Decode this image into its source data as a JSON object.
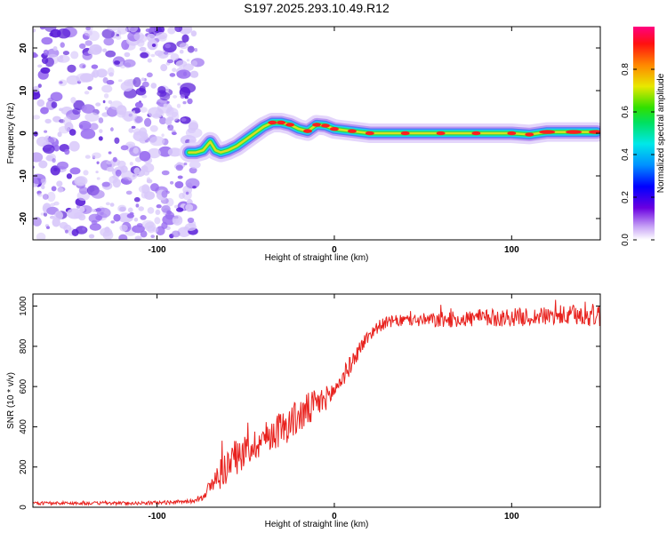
{
  "title": "S197.2025.293.10.49.R12",
  "colors": {
    "line": "#e8211d",
    "blob_dark": "#5a1ed8",
    "blob_mid": "#9a6ef0",
    "blob_light": "#d8c8fa"
  },
  "chart_data": [
    {
      "type": "heatmap",
      "title": "S197.2025.293.10.49.R12",
      "xlabel": "Height of straight line (km)",
      "ylabel": "Frequency (Hz)",
      "xlim": [
        -170,
        150
      ],
      "ylim": [
        -25,
        25
      ],
      "xticks": [
        -100,
        0,
        100
      ],
      "xtick_labels": [
        "-100",
        "0",
        "100"
      ],
      "yticks": [
        -20,
        -10,
        0,
        10,
        20
      ],
      "ytick_labels": [
        "-20",
        "-10",
        "0",
        "10",
        "20"
      ],
      "colorbar": {
        "label": "Normalized spectral amplitude",
        "range": [
          0,
          1
        ],
        "ticks": [
          0.0,
          0.2,
          0.4,
          0.6,
          0.8
        ],
        "tick_labels": [
          "0.0",
          "0.2",
          "0.4",
          "0.6",
          "0.8"
        ]
      },
      "noise_region_x": [
        -170,
        -80
      ],
      "ridge": {
        "x": [
          -82,
          -78,
          -74,
          -70,
          -67,
          -64,
          -60,
          -55,
          -50,
          -45,
          -40,
          -35,
          -30,
          -25,
          -20,
          -15,
          -10,
          -5,
          0,
          10,
          20,
          40,
          60,
          80,
          100,
          110,
          120,
          135,
          148
        ],
        "y": [
          -4.5,
          -4.5,
          -4,
          -2,
          -4,
          -4.5,
          -4,
          -3,
          -1.5,
          0,
          1.5,
          2.5,
          2.5,
          2,
          1,
          0.5,
          2,
          1.8,
          1,
          0.5,
          0,
          0,
          0,
          0,
          0,
          -0.3,
          0.3,
          0.3,
          0.3
        ],
        "amplitude": [
          0.35,
          0.4,
          0.45,
          0.35,
          0.4,
          0.45,
          0.5,
          0.55,
          0.6,
          0.65,
          0.65,
          0.7,
          0.75,
          0.7,
          0.65,
          0.7,
          0.7,
          0.75,
          0.75,
          0.8,
          0.85,
          0.85,
          0.85,
          0.85,
          0.85,
          0.8,
          0.9,
          0.95,
          0.95
        ]
      }
    },
    {
      "type": "line",
      "xlabel": "Height of straight line (km)",
      "ylabel": "SNR (10 * v/v)",
      "xlim": [
        -170,
        150
      ],
      "ylim": [
        0,
        1060
      ],
      "xticks": [
        -100,
        0,
        100
      ],
      "xtick_labels": [
        "-100",
        "0",
        "100"
      ],
      "yticks": [
        0,
        200,
        400,
        600,
        800,
        1000
      ],
      "ytick_labels": [
        "0",
        "200",
        "400",
        "600",
        "800",
        "1000"
      ],
      "series": [
        {
          "name": "SNR",
          "x": [
            -170,
            -150,
            -130,
            -110,
            -90,
            -80,
            -75,
            -70,
            -65,
            -60,
            -55,
            -50,
            -45,
            -40,
            -35,
            -30,
            -25,
            -20,
            -15,
            -10,
            -5,
            0,
            5,
            10,
            15,
            20,
            25,
            30,
            40,
            50,
            60,
            70,
            80,
            90,
            100,
            110,
            120,
            130,
            140,
            150
          ],
          "y": [
            20,
            20,
            20,
            20,
            25,
            30,
            50,
            100,
            160,
            210,
            250,
            280,
            310,
            340,
            370,
            390,
            420,
            450,
            480,
            510,
            540,
            580,
            650,
            720,
            800,
            860,
            900,
            920,
            930,
            930,
            930,
            935,
            940,
            940,
            945,
            945,
            950,
            950,
            955,
            955
          ],
          "noise": [
            8,
            8,
            8,
            8,
            10,
            10,
            20,
            40,
            80,
            90,
            90,
            80,
            80,
            80,
            85,
            90,
            90,
            90,
            90,
            80,
            60,
            50,
            50,
            45,
            40,
            35,
            30,
            30,
            30,
            35,
            40,
            40,
            45,
            45,
            45,
            45,
            45,
            50,
            55,
            60
          ]
        }
      ]
    }
  ]
}
